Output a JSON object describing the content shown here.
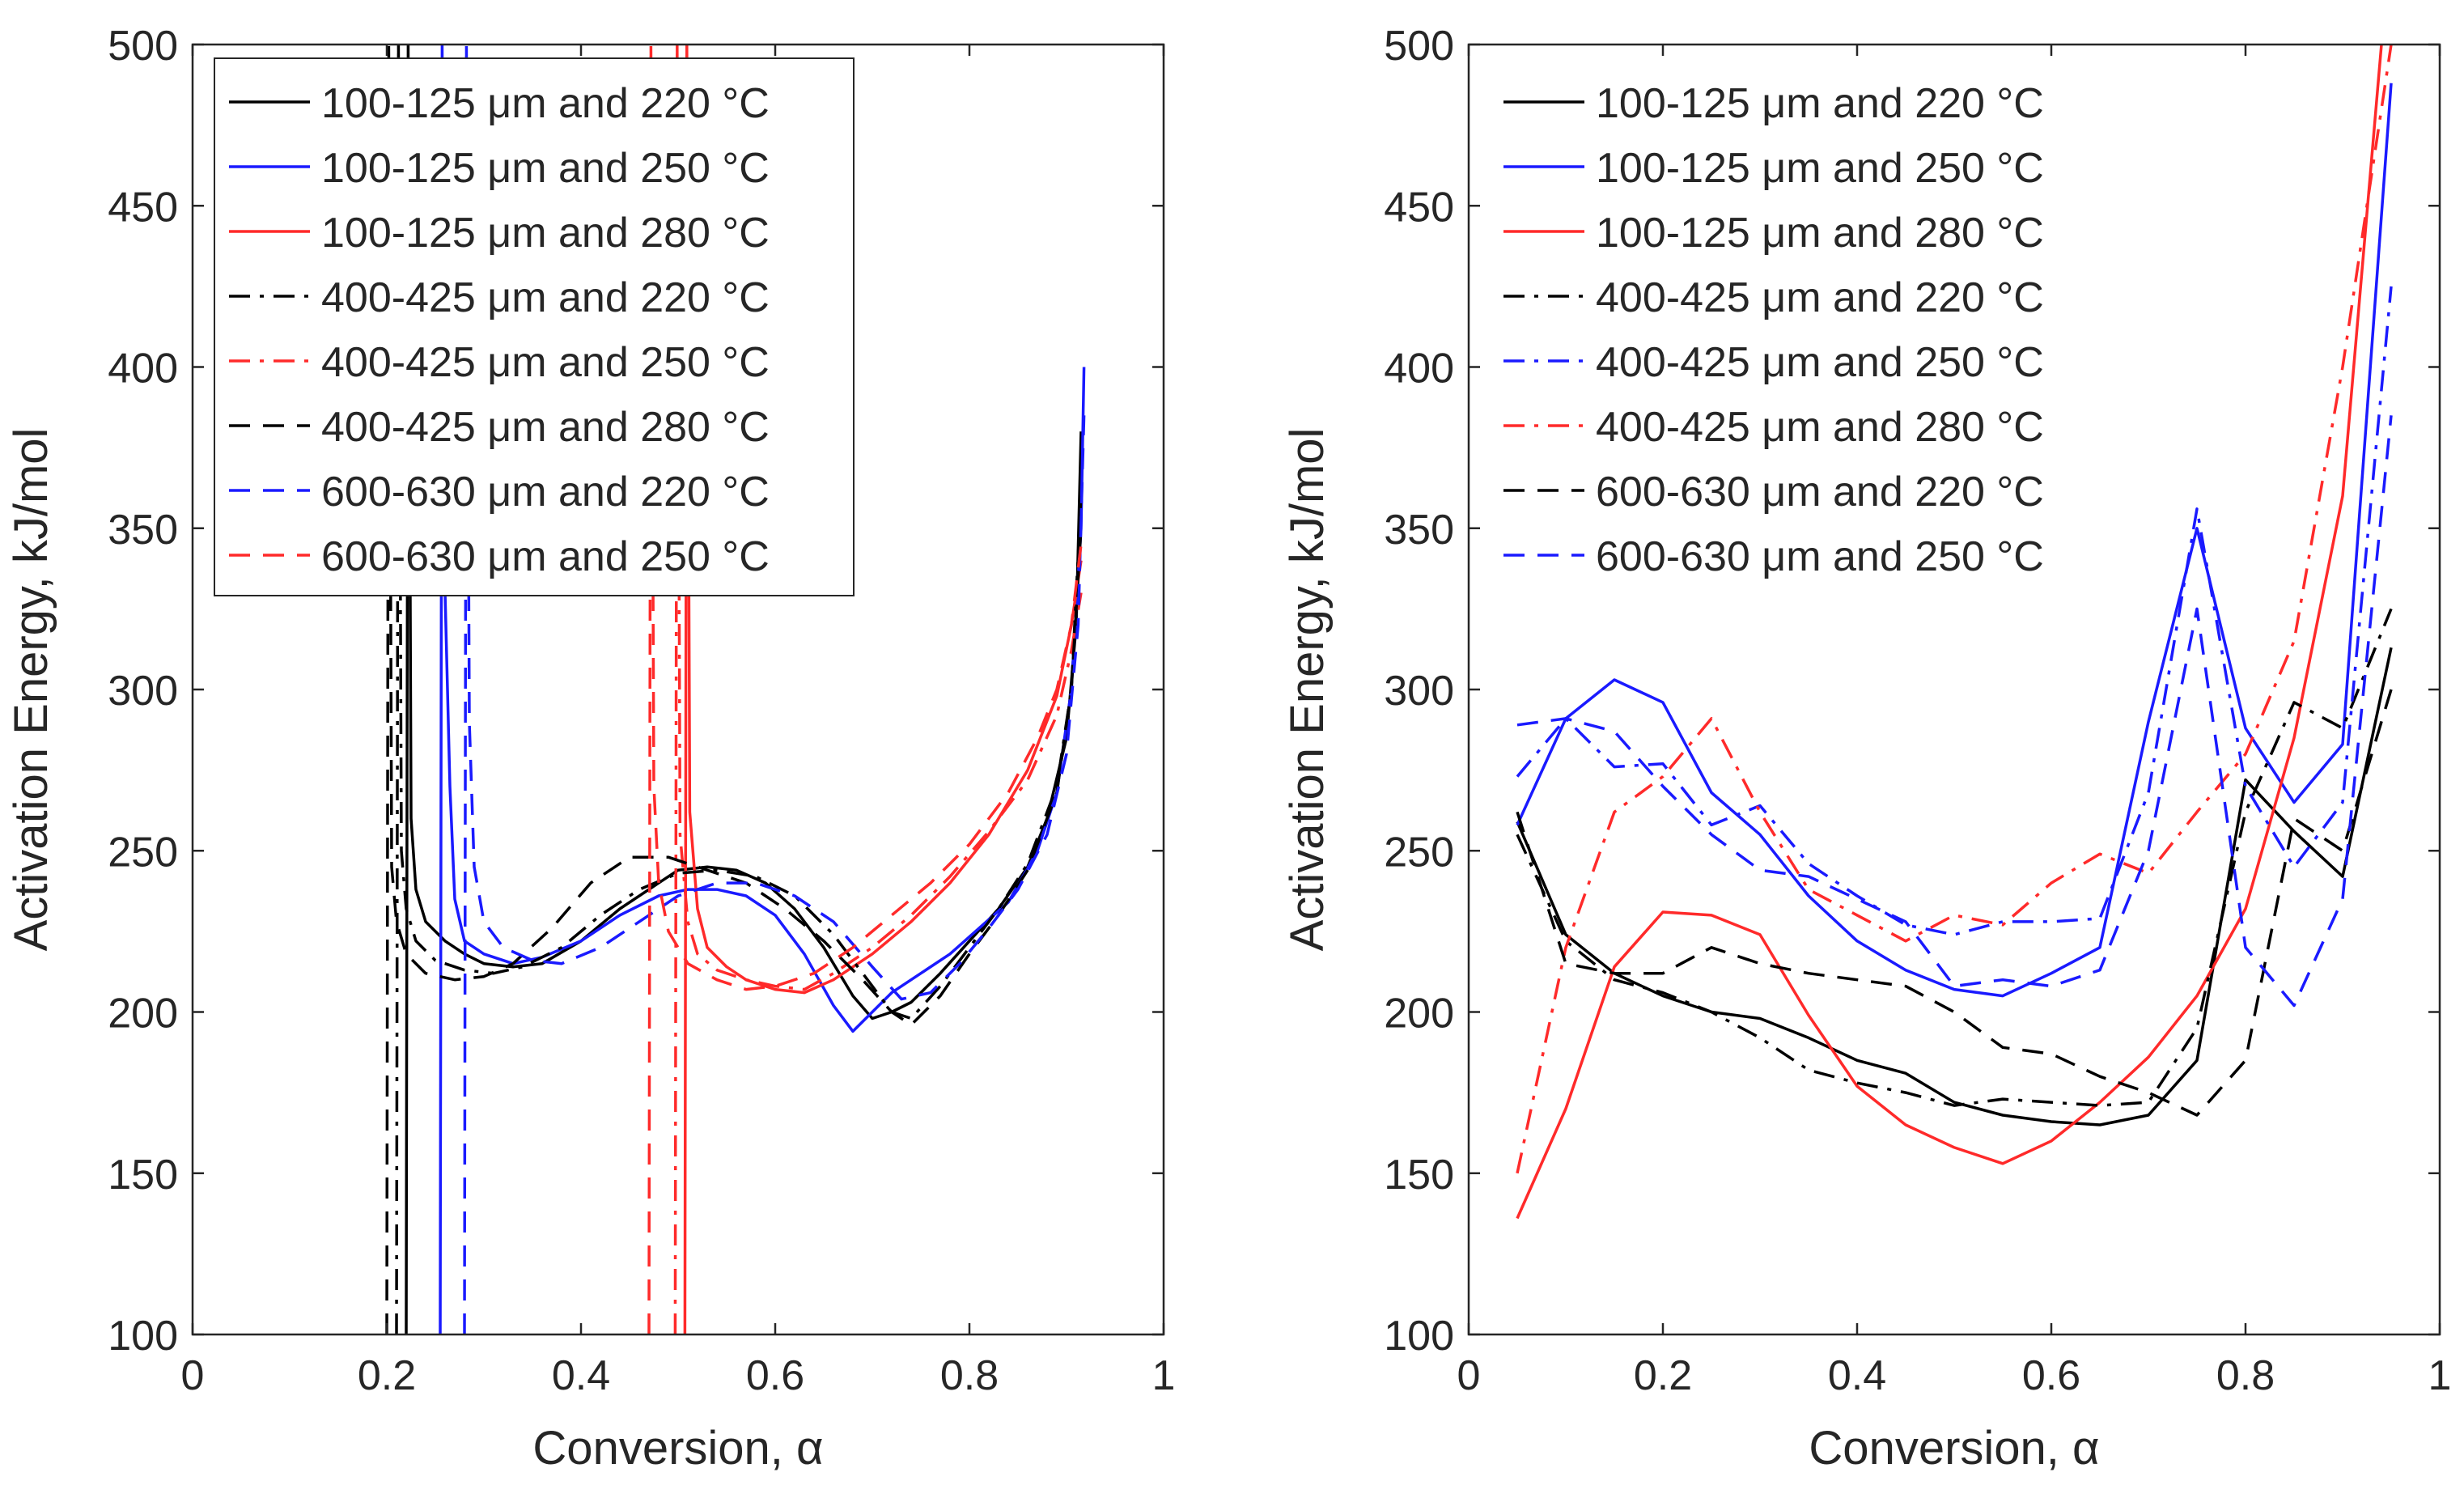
{
  "chart_data": [
    {
      "type": "line",
      "panel": "left",
      "xlabel": "Conversion, α",
      "ylabel": "Activation Energy, kJ/mol",
      "xlim": [
        0,
        1
      ],
      "ylim": [
        100,
        500
      ],
      "xticks": [
        0,
        0.2,
        0.4,
        0.6,
        0.8,
        1
      ],
      "yticks": [
        100,
        150,
        200,
        250,
        300,
        350,
        400,
        450,
        500
      ],
      "xtick_labels": [
        "0",
        "0.2",
        "0.4",
        "0.6",
        "0.8",
        "1"
      ],
      "ytick_labels": [
        "100",
        "150",
        "200",
        "250",
        "300",
        "350",
        "400",
        "450",
        "500"
      ],
      "legend_position": "top-left, boxed",
      "series": [
        {
          "name": "100-125 μm and 220 °C",
          "color": "#000000",
          "dash": "solid",
          "x": [
            0.22,
            0.222,
            0.225,
            0.23,
            0.24,
            0.26,
            0.28,
            0.3,
            0.33,
            0.36,
            0.4,
            0.44,
            0.48,
            0.5,
            0.53,
            0.56,
            0.59,
            0.62,
            0.65,
            0.68,
            0.7,
            0.72,
            0.74,
            0.77,
            0.8,
            0.83,
            0.86,
            0.88,
            0.9,
            0.91,
            0.915
          ],
          "y": [
            100,
            500,
            260,
            238,
            228,
            222,
            218,
            215,
            214,
            215,
            222,
            232,
            240,
            244,
            245,
            244,
            240,
            232,
            220,
            205,
            198,
            200,
            203,
            212,
            222,
            232,
            245,
            260,
            285,
            320,
            380
          ]
        },
        {
          "name": "100-125 μm and 250 °C",
          "color": "#1a1aff",
          "dash": "solid",
          "x": [
            0.255,
            0.257,
            0.26,
            0.265,
            0.27,
            0.28,
            0.3,
            0.33,
            0.36,
            0.4,
            0.44,
            0.48,
            0.51,
            0.54,
            0.57,
            0.6,
            0.63,
            0.66,
            0.68,
            0.7,
            0.72,
            0.75,
            0.78,
            0.81,
            0.84,
            0.87,
            0.89,
            0.905,
            0.915,
            0.918
          ],
          "y": [
            100,
            500,
            330,
            270,
            235,
            222,
            218,
            215,
            217,
            222,
            230,
            236,
            238,
            238,
            236,
            230,
            218,
            202,
            194,
            200,
            206,
            212,
            218,
            226,
            234,
            250,
            268,
            300,
            350,
            400
          ]
        },
        {
          "name": "100-125 μm and 280 °C",
          "color": "#ff2a2a",
          "dash": "solid",
          "x": [
            0.507,
            0.509,
            0.512,
            0.52,
            0.53,
            0.55,
            0.57,
            0.6,
            0.63,
            0.66,
            0.7,
            0.74,
            0.78,
            0.82,
            0.86,
            0.89,
            0.905,
            0.915
          ],
          "y": [
            100,
            500,
            262,
            232,
            220,
            214,
            210,
            207,
            206,
            210,
            218,
            228,
            240,
            255,
            275,
            298,
            320,
            340
          ]
        },
        {
          "name": "400-425 μm and 220 °C",
          "color": "#000000",
          "dash": "dashdot",
          "x": [
            0.21,
            0.212,
            0.215,
            0.22,
            0.23,
            0.25,
            0.28,
            0.31,
            0.34,
            0.38,
            0.42,
            0.46,
            0.5,
            0.54,
            0.58,
            0.62,
            0.66,
            0.7,
            0.72,
            0.74,
            0.77,
            0.8,
            0.83,
            0.86,
            0.89,
            0.905,
            0.915
          ],
          "y": [
            100,
            500,
            250,
            232,
            222,
            216,
            213,
            212,
            214,
            220,
            230,
            238,
            243,
            244,
            242,
            236,
            224,
            208,
            200,
            198,
            208,
            220,
            232,
            246,
            270,
            300,
            360
          ]
        },
        {
          "name": "400-425 μm and 250 °C",
          "color": "#ff2a2a",
          "dash": "dashdot",
          "x": [
            0.497,
            0.499,
            0.502,
            0.51,
            0.52,
            0.54,
            0.57,
            0.6,
            0.63,
            0.66,
            0.7,
            0.74,
            0.78,
            0.82,
            0.86,
            0.89,
            0.905,
            0.915
          ],
          "y": [
            100,
            500,
            255,
            228,
            218,
            213,
            210,
            208,
            207,
            212,
            220,
            230,
            242,
            256,
            272,
            292,
            312,
            330
          ]
        },
        {
          "name": "400-425 μm and 280 °C",
          "color": "#000000",
          "dash": "dashed",
          "x": [
            0.2,
            0.202,
            0.205,
            0.21,
            0.22,
            0.24,
            0.27,
            0.3,
            0.33,
            0.37,
            0.41,
            0.45,
            0.49,
            0.53,
            0.57,
            0.61,
            0.65,
            0.69,
            0.72,
            0.74,
            0.77,
            0.8,
            0.83,
            0.86,
            0.89,
            0.905,
            0.915
          ],
          "y": [
            100,
            500,
            245,
            228,
            218,
            212,
            210,
            211,
            215,
            226,
            240,
            248,
            248,
            244,
            240,
            232,
            222,
            210,
            200,
            196,
            205,
            218,
            230,
            244,
            268,
            300,
            350
          ]
        },
        {
          "name": "600-630 μm and 220 °C",
          "color": "#1a1aff",
          "dash": "dashed",
          "x": [
            0.28,
            0.282,
            0.285,
            0.29,
            0.3,
            0.32,
            0.35,
            0.38,
            0.42,
            0.46,
            0.5,
            0.54,
            0.58,
            0.62,
            0.66,
            0.7,
            0.73,
            0.76,
            0.79,
            0.82,
            0.85,
            0.88,
            0.9,
            0.912,
            0.918
          ],
          "y": [
            100,
            500,
            290,
            245,
            228,
            220,
            216,
            215,
            220,
            228,
            236,
            240,
            240,
            236,
            228,
            214,
            204,
            206,
            215,
            226,
            238,
            255,
            280,
            320,
            385
          ]
        },
        {
          "name": "600-630 μm and 250 °C",
          "color": "#ff2a2a",
          "dash": "dashed",
          "x": [
            0.47,
            0.472,
            0.475,
            0.48,
            0.49,
            0.51,
            0.54,
            0.57,
            0.6,
            0.64,
            0.68,
            0.72,
            0.76,
            0.8,
            0.84,
            0.87,
            0.89,
            0.905,
            0.915
          ],
          "y": [
            100,
            500,
            270,
            240,
            225,
            215,
            210,
            207,
            208,
            212,
            220,
            230,
            240,
            252,
            268,
            285,
            300,
            320,
            345
          ]
        }
      ]
    },
    {
      "type": "line",
      "panel": "right",
      "xlabel": "Conversion, α",
      "ylabel": "Activation Energy, kJ/mol",
      "xlim": [
        0,
        1
      ],
      "ylim": [
        100,
        500
      ],
      "xticks": [
        0,
        0.2,
        0.4,
        0.6,
        0.8,
        1
      ],
      "yticks": [
        100,
        150,
        200,
        250,
        300,
        350,
        400,
        450,
        500
      ],
      "xtick_labels": [
        "0",
        "0.2",
        "0.4",
        "0.6",
        "0.8",
        "1"
      ],
      "ytick_labels": [
        "100",
        "150",
        "200",
        "250",
        "300",
        "350",
        "400",
        "450",
        "500"
      ],
      "legend_position": "top-left, no box",
      "series": [
        {
          "name": "100-125 μm and 220 °C",
          "color": "#000000",
          "dash": "solid",
          "x": [
            0.05,
            0.1,
            0.15,
            0.2,
            0.25,
            0.3,
            0.35,
            0.4,
            0.45,
            0.5,
            0.55,
            0.6,
            0.65,
            0.7,
            0.75,
            0.8,
            0.85,
            0.9,
            0.95
          ],
          "y": [
            259,
            224,
            212,
            205,
            200,
            198,
            192,
            185,
            181,
            172,
            168,
            166,
            165,
            168,
            185,
            272,
            256,
            242,
            313
          ]
        },
        {
          "name": "100-125 μm and 250 °C",
          "color": "#1a1aff",
          "dash": "solid",
          "x": [
            0.05,
            0.1,
            0.15,
            0.2,
            0.25,
            0.3,
            0.35,
            0.4,
            0.45,
            0.5,
            0.55,
            0.6,
            0.65,
            0.7,
            0.75,
            0.8,
            0.85,
            0.9,
            0.95
          ],
          "y": [
            258,
            291,
            303,
            296,
            268,
            255,
            236,
            222,
            213,
            207,
            205,
            212,
            220,
            290,
            350,
            288,
            265,
            283,
            488
          ]
        },
        {
          "name": "100-125 μm and 280 °C",
          "color": "#ff2a2a",
          "dash": "solid",
          "x": [
            0.05,
            0.1,
            0.15,
            0.2,
            0.25,
            0.3,
            0.35,
            0.4,
            0.45,
            0.5,
            0.55,
            0.6,
            0.65,
            0.7,
            0.75,
            0.8,
            0.85,
            0.9,
            0.94
          ],
          "y": [
            136,
            170,
            214,
            231,
            230,
            224,
            199,
            177,
            165,
            158,
            153,
            160,
            172,
            186,
            205,
            232,
            285,
            360,
            500
          ]
        },
        {
          "name": "400-425 μm and 220 °C",
          "color": "#000000",
          "dash": "dashdot",
          "x": [
            0.05,
            0.1,
            0.15,
            0.2,
            0.25,
            0.3,
            0.35,
            0.4,
            0.45,
            0.5,
            0.55,
            0.6,
            0.65,
            0.7,
            0.75,
            0.8,
            0.85,
            0.9,
            0.95
          ],
          "y": [
            255,
            222,
            210,
            206,
            200,
            192,
            182,
            178,
            175,
            171,
            173,
            172,
            171,
            172,
            195,
            262,
            296,
            288,
            325
          ]
        },
        {
          "name": "400-425 μm and 250 °C",
          "color": "#1a1aff",
          "dash": "dashdot",
          "x": [
            0.05,
            0.1,
            0.15,
            0.2,
            0.25,
            0.3,
            0.35,
            0.4,
            0.45,
            0.5,
            0.55,
            0.6,
            0.65,
            0.7,
            0.75,
            0.8,
            0.85,
            0.9,
            0.95
          ],
          "y": [
            273,
            291,
            276,
            277,
            258,
            264,
            246,
            236,
            227,
            224,
            228,
            228,
            229,
            268,
            356,
            270,
            245,
            265,
            425
          ]
        },
        {
          "name": "400-425 μm and 280 °C",
          "color": "#ff2a2a",
          "dash": "dashdot",
          "x": [
            0.05,
            0.1,
            0.15,
            0.2,
            0.25,
            0.3,
            0.35,
            0.4,
            0.45,
            0.5,
            0.55,
            0.6,
            0.65,
            0.7,
            0.75,
            0.8,
            0.85,
            0.9,
            0.95
          ],
          "y": [
            150,
            220,
            262,
            273,
            291,
            262,
            238,
            230,
            222,
            230,
            227,
            240,
            249,
            243,
            262,
            280,
            315,
            400,
            500
          ]
        },
        {
          "name": "600-630 μm and 220 °C",
          "color": "#000000",
          "dash": "dashed",
          "x": [
            0.05,
            0.1,
            0.15,
            0.2,
            0.25,
            0.3,
            0.35,
            0.4,
            0.45,
            0.5,
            0.55,
            0.6,
            0.65,
            0.7,
            0.75,
            0.8,
            0.85,
            0.9,
            0.95
          ],
          "y": [
            262,
            215,
            212,
            212,
            220,
            215,
            212,
            210,
            208,
            200,
            189,
            187,
            180,
            175,
            168,
            185,
            260,
            250,
            300
          ]
        },
        {
          "name": "600-630 μm and 250 °C",
          "color": "#1a1aff",
          "dash": "dashed",
          "x": [
            0.05,
            0.1,
            0.15,
            0.2,
            0.25,
            0.3,
            0.35,
            0.4,
            0.45,
            0.5,
            0.55,
            0.6,
            0.65,
            0.7,
            0.75,
            0.8,
            0.85,
            0.9,
            0.95
          ],
          "y": [
            289,
            291,
            287,
            270,
            255,
            244,
            242,
            235,
            228,
            208,
            210,
            208,
            213,
            250,
            325,
            220,
            202,
            235,
            385
          ]
        }
      ]
    }
  ]
}
